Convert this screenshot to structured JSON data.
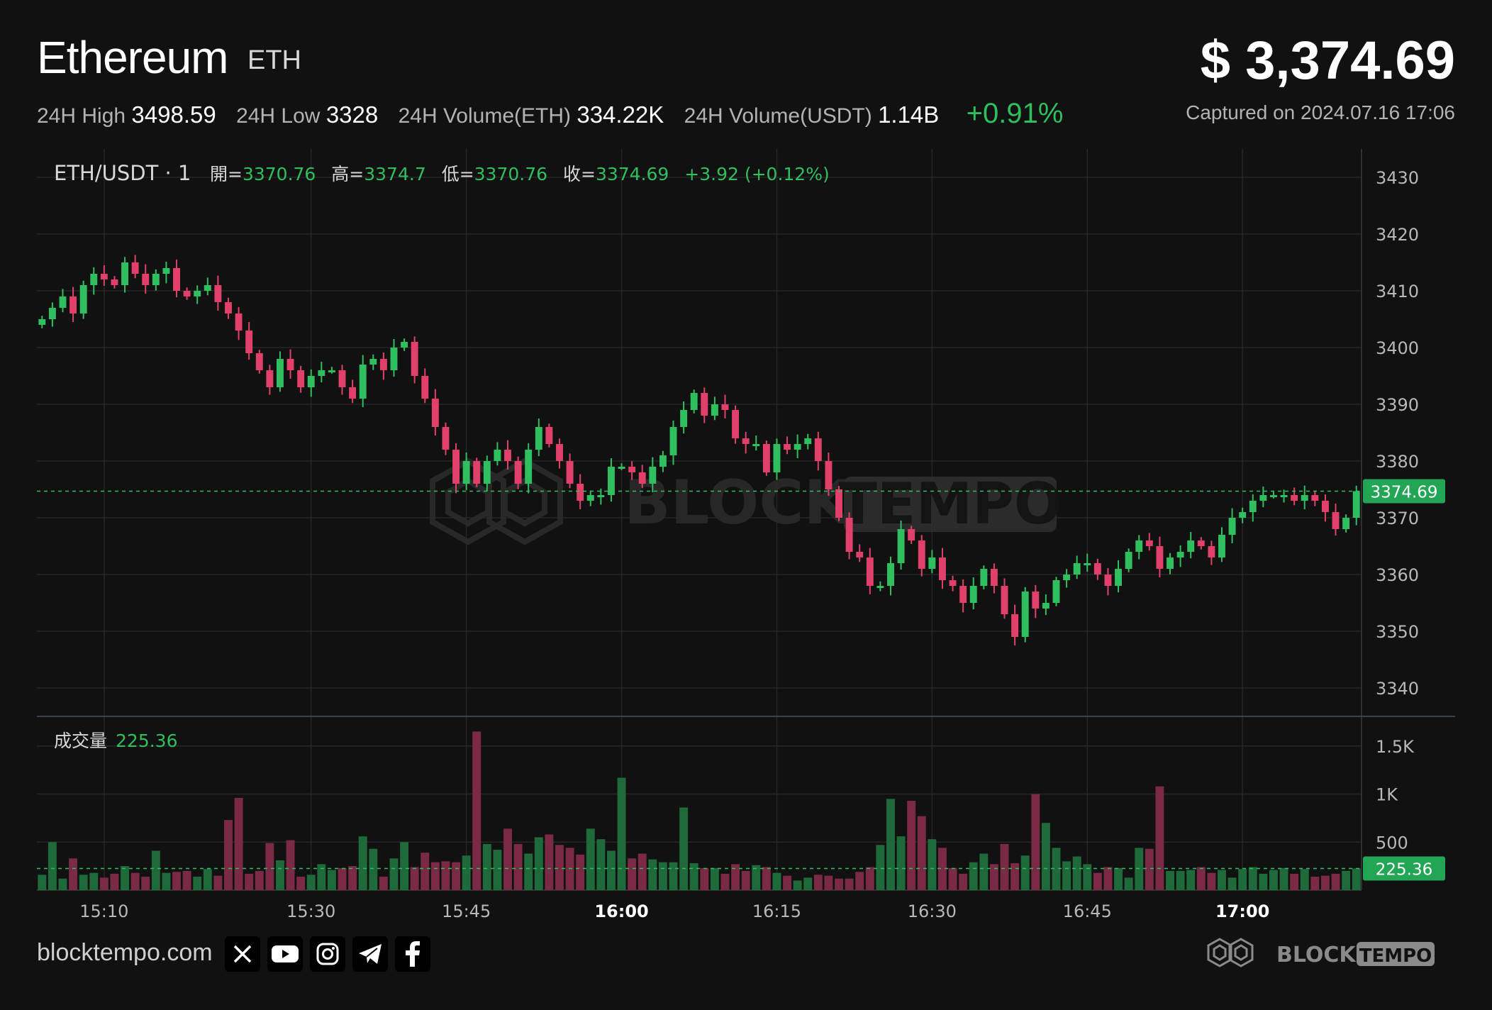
{
  "header": {
    "name": "Ethereum",
    "symbol": "ETH",
    "price": "$ 3,374.69",
    "stats": [
      {
        "label": "24H High",
        "value": "3498.59"
      },
      {
        "label": "24H Low",
        "value": "3328"
      },
      {
        "label": "24H Volume(ETH)",
        "value": "334.22K"
      },
      {
        "label": "24H Volume(USDT)",
        "value": "1.14B"
      }
    ],
    "change": "+0.91%",
    "captured": "Captured on 2024.07.16 17:06"
  },
  "legend": {
    "pair": "ETH/USDT · 1",
    "open_label": "開=",
    "open": "3370.76",
    "high_label": "高=",
    "high": "3374.7",
    "low_label": "低=",
    "low": "3370.76",
    "close_label": "收=",
    "close": "3374.69",
    "change": "+3.92 (+0.12%)",
    "volume_label": "成交量",
    "volume": "225.36"
  },
  "watermark": {
    "left": "BLOCK",
    "right": "TEMPO"
  },
  "footer": {
    "site": "blocktempo.com",
    "social_icons": [
      "x-icon",
      "youtube-icon",
      "instagram-icon",
      "telegram-icon",
      "facebook-icon"
    ],
    "brand_left": "BLOCK",
    "brand_right": "TEMPO"
  },
  "colors": {
    "up": "#2fbf5f",
    "down": "#e0406a",
    "background": "#111111",
    "grid": "#262626"
  },
  "chart_data": {
    "type": "candlestick",
    "interval": "1 minute",
    "price_axis": {
      "min": 3335,
      "max": 3435,
      "ticks": [
        3430,
        3420,
        3410,
        3400,
        3390,
        3380,
        3370,
        3360,
        3350,
        3340
      ],
      "last_price_label": "3374.69"
    },
    "volume_axis": {
      "ticks": [
        {
          "v": 1500,
          "label": "1.5K"
        },
        {
          "v": 1000,
          "label": "1K"
        },
        {
          "v": 500,
          "label": "500"
        }
      ],
      "last_volume_label": "225.36",
      "last_volume": 225.36
    },
    "time_ticks": [
      {
        "label": "15:10",
        "bar": 6,
        "bold": false
      },
      {
        "label": "15:30",
        "bar": 26,
        "bold": false
      },
      {
        "label": "15:45",
        "bar": 41,
        "bold": false
      },
      {
        "label": "16:00",
        "bar": 56,
        "bold": true
      },
      {
        "label": "16:15",
        "bar": 71,
        "bold": false
      },
      {
        "label": "16:30",
        "bar": 86,
        "bold": false
      },
      {
        "label": "16:45",
        "bar": 101,
        "bold": false
      },
      {
        "label": "17:00",
        "bar": 116,
        "bold": true
      }
    ],
    "closes": [
      3405,
      3407,
      3409,
      3406,
      3411,
      3413,
      3412,
      3411,
      3415,
      3413,
      3411,
      3413,
      3414,
      3410,
      3409,
      3410,
      3411,
      3408,
      3406,
      3403,
      3399,
      3396,
      3393,
      3398,
      3396,
      3393,
      3395,
      3396,
      3396,
      3393,
      3391,
      3397,
      3398,
      3396,
      3400,
      3401,
      3395,
      3391,
      3386,
      3382,
      3376,
      3380,
      3376,
      3380,
      3382,
      3380,
      3376,
      3382,
      3386,
      3383,
      3380,
      3376,
      3373,
      3374,
      3374,
      3379,
      3379,
      3378,
      3376,
      3379,
      3381,
      3386,
      3389,
      3392,
      3388,
      3390,
      3389,
      3384,
      3383,
      3383,
      3378,
      3383,
      3382,
      3383,
      3384,
      3380,
      3375,
      3370,
      3364,
      3363,
      3358,
      3358,
      3362,
      3368,
      3366,
      3361,
      3363,
      3359,
      3358,
      3355,
      3358,
      3361,
      3358,
      3353,
      3349,
      3357,
      3354,
      3355,
      3359,
      3360,
      3362,
      3362,
      3360,
      3358,
      3361,
      3364,
      3366,
      3365,
      3361,
      3363,
      3364,
      3366,
      3365,
      3363,
      3367,
      3370,
      3371,
      3373,
      3374,
      3374,
      3374,
      3373,
      3374,
      3373,
      3371,
      3368,
      3370,
      3374.69
    ],
    "volumes": [
      160,
      500,
      120,
      330,
      160,
      180,
      130,
      170,
      250,
      180,
      140,
      410,
      180,
      190,
      200,
      140,
      220,
      150,
      730,
      960,
      170,
      200,
      490,
      310,
      520,
      140,
      160,
      270,
      210,
      230,
      250,
      560,
      430,
      140,
      330,
      500,
      240,
      390,
      290,
      300,
      290,
      360,
      1650,
      480,
      420,
      640,
      480,
      380,
      550,
      580,
      470,
      440,
      370,
      640,
      530,
      410,
      1170,
      330,
      380,
      320,
      290,
      290,
      860,
      280,
      230,
      230,
      170,
      270,
      200,
      260,
      240,
      180,
      150,
      100,
      130,
      160,
      150,
      120,
      120,
      190,
      240,
      470,
      950,
      560,
      930,
      770,
      530,
      440,
      230,
      170,
      290,
      380,
      270,
      480,
      280,
      360,
      1000,
      700,
      440,
      300,
      350,
      270,
      180,
      240,
      230,
      130,
      440,
      430,
      1080,
      200,
      200,
      210,
      240,
      180,
      210,
      130,
      220,
      240,
      170,
      210,
      230,
      170,
      220,
      140,
      150,
      170,
      200,
      225.36
    ]
  }
}
